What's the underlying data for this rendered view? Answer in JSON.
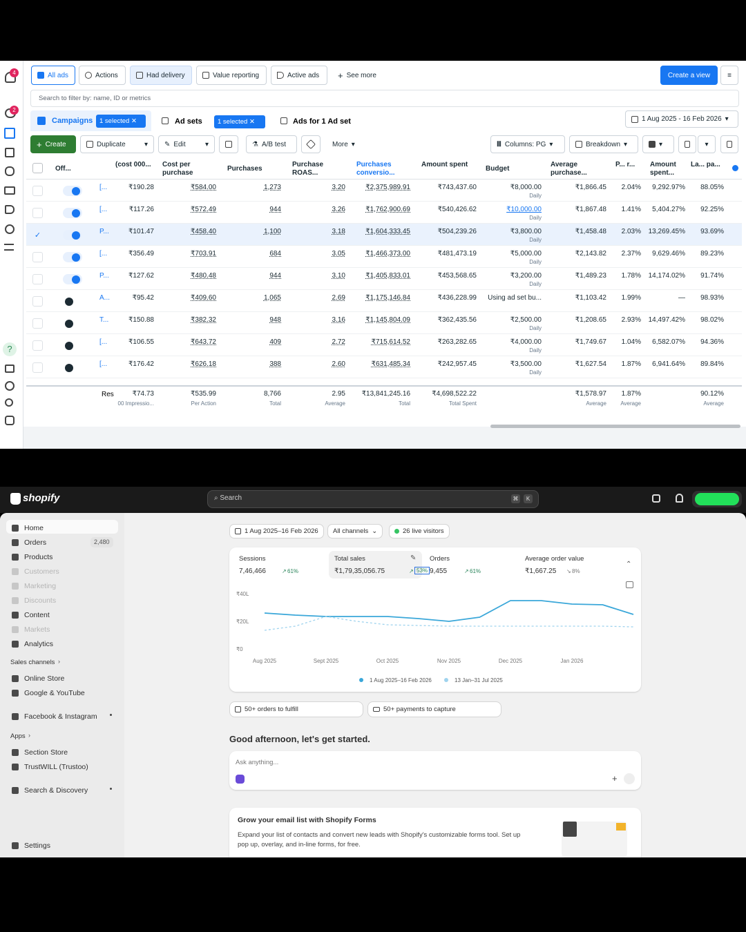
{
  "ads_manager": {
    "notification_badges": [
      "4",
      "2"
    ],
    "toolbar": [
      "All ads",
      "Actions",
      "Had delivery",
      "Value reporting",
      "Active ads",
      "See more"
    ],
    "create_view": "Create a view",
    "search_placeholder": "Search to filter by: name, ID or metrics",
    "tabs": {
      "campaigns": "Campaigns",
      "campaigns_selected": "1 selected",
      "ad_sets": "Ad sets",
      "ad_sets_selected": "1 selected",
      "ads": "Ads for 1 Ad set"
    },
    "date_range": "1 Aug 2025 - 16 Feb 2026",
    "actions": [
      "Create",
      "Duplicate",
      "Edit",
      "A/B test",
      "More"
    ],
    "columns_button": "Columns: PG",
    "breakdown": "Breakdown",
    "table": {
      "headers": [
        "Off...",
        "(cost 000...",
        "Cost per purchase",
        "Purchases",
        "Purchase ROAS...",
        "Purchases conversio...",
        "Amount spent",
        "Budget",
        "Average purchase...",
        "P... r...",
        "Amount spent...",
        "La... pa..."
      ],
      "rows": [
        {
          "selected": false,
          "active": true,
          "cells": [
            "[...",
            "₹190.28",
            "₹584.00",
            "1,273",
            "3.20",
            "₹2,375,989.91",
            "₹743,437.60",
            "₹8,000.00",
            "₹1,866.45",
            "2.04%",
            "9,292.97%",
            "88.05%"
          ],
          "budget_period": "Daily"
        },
        {
          "selected": false,
          "active": true,
          "cells": [
            "[...",
            "₹117.26",
            "₹572.49",
            "944",
            "3.26",
            "₹1,762,900.69",
            "₹540,426.62",
            "₹10,000.00",
            "₹1,867.48",
            "1.41%",
            "5,404.27%",
            "92.25%"
          ],
          "budget_period": "Daily"
        },
        {
          "selected": true,
          "active": true,
          "cells": [
            "P...",
            "₹101.47",
            "₹458.40",
            "1,100",
            "3.18",
            "₹1,604,333.45",
            "₹504,239.26",
            "₹3,800.00",
            "₹1,458.48",
            "2.03%",
            "13,269.45%",
            "93.69%"
          ],
          "budget_period": "Daily"
        },
        {
          "selected": false,
          "active": true,
          "cells": [
            "[...",
            "₹356.49",
            "₹703.91",
            "684",
            "3.05",
            "₹1,466,373.00",
            "₹481,473.19",
            "₹5,000.00",
            "₹2,143.82",
            "2.37%",
            "9,629.46%",
            "89.23%"
          ],
          "budget_period": "Daily"
        },
        {
          "selected": false,
          "active": true,
          "cells": [
            "P...",
            "₹127.62",
            "₹480.48",
            "944",
            "3.10",
            "₹1,405,833.01",
            "₹453,568.65",
            "₹3,200.00",
            "₹1,489.23",
            "1.78%",
            "14,174.02%",
            "91.74%"
          ],
          "budget_period": "Daily"
        },
        {
          "selected": false,
          "active": false,
          "cells": [
            "A...",
            "₹95.42",
            "₹409.60",
            "1,065",
            "2.69",
            "₹1,175,146.84",
            "₹436,228.99",
            "Using ad set bu...",
            "₹1,103.42",
            "1.99%",
            "—",
            "98.93%"
          ]
        },
        {
          "selected": false,
          "active": false,
          "cells": [
            "T...",
            "₹150.88",
            "₹382.32",
            "948",
            "3.16",
            "₹1,145,804.09",
            "₹362,435.56",
            "₹2,500.00",
            "₹1,208.65",
            "2.93%",
            "14,497.42%",
            "98.02%"
          ],
          "budget_period": "Daily"
        },
        {
          "selected": false,
          "active": false,
          "cells": [
            "[...",
            "₹106.55",
            "₹643.72",
            "409",
            "2.72",
            "₹715,614.52",
            "₹263,282.65",
            "₹4,000.00",
            "₹1,749.67",
            "1.04%",
            "6,582.07%",
            "94.36%"
          ],
          "budget_period": "Daily"
        },
        {
          "selected": false,
          "active": false,
          "cells": [
            "[...",
            "₹176.42",
            "₹626.18",
            "388",
            "2.60",
            "₹631,485.34",
            "₹242,957.45",
            "₹3,500.00",
            "₹1,627.54",
            "1.87%",
            "6,941.64%",
            "89.84%"
          ],
          "budget_period": "Daily"
        }
      ],
      "totals": [
        {
          "value": "Res"
        },
        {
          "value": "₹74.73",
          "caption": "00 Impressio..."
        },
        {
          "value": "₹535.99",
          "caption": "Per Action"
        },
        {
          "value": "8,766",
          "caption": "Total"
        },
        {
          "value": "2.95",
          "caption": "Average"
        },
        {
          "value": "₹13,841,245.16",
          "caption": "Total"
        },
        {
          "value": "₹4,698,522.22",
          "caption": "Total Spent"
        },
        null,
        {
          "value": "₹1,578.97",
          "caption": "Average"
        },
        {
          "value": "1.87%",
          "caption": "Average"
        },
        null,
        {
          "value": "90.12%",
          "caption": "Average"
        }
      ]
    }
  },
  "shopify": {
    "logo": "shopify",
    "search": "Search",
    "shortcut": [
      "⌘",
      "K"
    ],
    "nav": [
      {
        "label": "Home",
        "dim": false
      },
      {
        "label": "Orders",
        "dim": false,
        "badge": "2,480"
      },
      {
        "label": "Products",
        "dim": false
      },
      {
        "label": "Customers",
        "dim": true
      },
      {
        "label": "Marketing",
        "dim": true
      },
      {
        "label": "Discounts",
        "dim": true
      },
      {
        "label": "Content",
        "dim": false
      },
      {
        "label": "Markets",
        "dim": true
      },
      {
        "label": "Analytics",
        "dim": false
      }
    ],
    "sales_channels_heading": "Sales channels",
    "sales_channels": [
      "Online Store",
      "Google & YouTube",
      "Facebook & Instagram"
    ],
    "apps_heading": "Apps",
    "apps": [
      "Section Store",
      "TrustWILL (Trustoo)",
      "Search & Discovery"
    ],
    "settings": "Settings",
    "filters": [
      "1 Aug 2025–16 Feb 2026",
      "All channels",
      "26 live visitors"
    ],
    "metrics": [
      {
        "label": "Sessions",
        "value": "7,46,466",
        "change": "61%"
      },
      {
        "label": "Total sales",
        "value": "₹1,79,35,056.75",
        "change": "53%"
      },
      {
        "label": "Orders",
        "value": "9,455",
        "change": "61%"
      },
      {
        "label": "Average order value",
        "value": "₹1,667.25",
        "change": "8%"
      }
    ],
    "chart_data": {
      "type": "line",
      "categories": [
        "Aug 2025",
        null,
        "Sept 2025",
        null,
        "Oct 2025",
        null,
        "Nov 2025",
        null,
        "Dec 2025",
        null,
        "Jan 2026",
        null,
        null
      ],
      "ylim": [
        0,
        40
      ],
      "yticks": [
        {
          "value": 0,
          "label": "₹0"
        },
        {
          "value": 20,
          "label": "₹20L"
        },
        {
          "value": 40,
          "label": "₹40L"
        }
      ],
      "series": [
        {
          "name": "1 Aug 2025–16 Feb 2026",
          "color": "#3aa7d9",
          "dashed": false,
          "values": [
            26,
            24.5,
            23.5,
            23.5,
            23.5,
            22,
            20,
            23,
            35,
            35,
            32.5,
            32,
            25
          ]
        },
        {
          "name": "13 Jan–31 Jul 2025",
          "color": "#9fd3ee",
          "dashed": true,
          "values": [
            13.5,
            16.5,
            23.5,
            20,
            17.5,
            17,
            16.5,
            16.5,
            16.5,
            16.5,
            16.5,
            16.5,
            16
          ]
        }
      ]
    },
    "tasks": [
      "50+ orders to fulfill",
      "50+ payments to capture"
    ],
    "greeting": "Good afternoon, let's get started.",
    "ask_placeholder": "Ask anything...",
    "promo": {
      "title": "Grow your email list with Shopify Forms",
      "body": "Expand your list of contacts and convert new leads with Shopify's customizable forms tool. Set up pop up, overlay, and in-line forms, for free."
    }
  }
}
